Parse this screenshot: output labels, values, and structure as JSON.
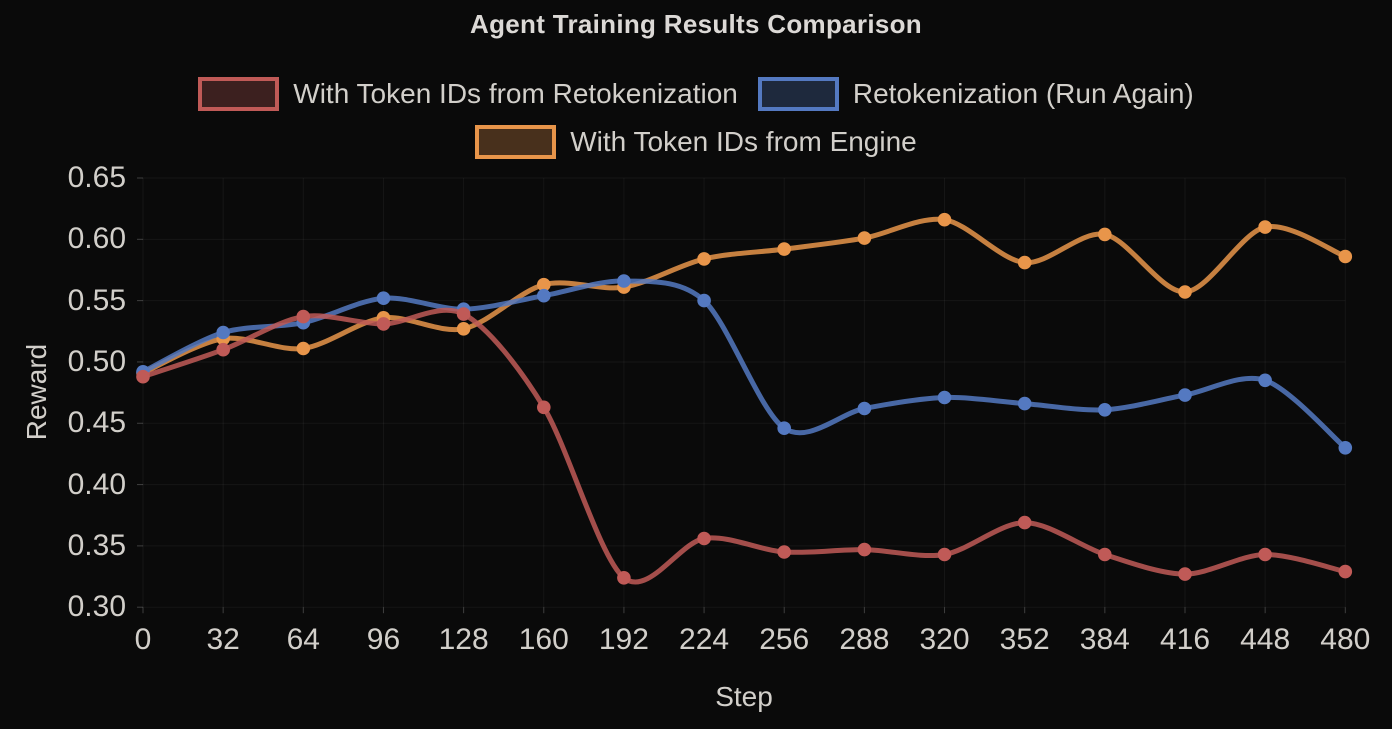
{
  "title": "Agent Training Results Comparison",
  "chart_data": {
    "type": "line",
    "title": "Agent Training Results Comparison",
    "xlabel": "Step",
    "ylabel": "Reward",
    "x": [
      0,
      32,
      64,
      96,
      128,
      160,
      192,
      224,
      256,
      288,
      320,
      352,
      384,
      416,
      448,
      480
    ],
    "xlim": [
      0,
      480
    ],
    "ylim": [
      0.3,
      0.65
    ],
    "yticks": [
      0.3,
      0.35,
      0.4,
      0.45,
      0.5,
      0.55,
      0.6,
      0.65
    ],
    "grid": true,
    "smooth": true,
    "legend_position": "top",
    "series": [
      {
        "name": "With Token IDs from Retokenization",
        "color": "#c05a57",
        "values": [
          0.488,
          0.51,
          0.537,
          0.531,
          0.539,
          0.463,
          0.324,
          0.356,
          0.345,
          0.347,
          0.343,
          0.369,
          0.343,
          0.327,
          0.343,
          0.329
        ]
      },
      {
        "name": "Retokenization (Run Again)",
        "color": "#5479c1",
        "values": [
          0.492,
          0.524,
          0.532,
          0.552,
          0.543,
          0.554,
          0.566,
          0.55,
          0.446,
          0.462,
          0.471,
          0.466,
          0.461,
          0.473,
          0.485,
          0.43
        ]
      },
      {
        "name": "With Token IDs from Engine",
        "color": "#e8954a",
        "values": [
          0.491,
          0.519,
          0.511,
          0.536,
          0.527,
          0.563,
          0.561,
          0.584,
          0.592,
          0.601,
          0.616,
          0.581,
          0.604,
          0.557,
          0.61,
          0.586
        ]
      }
    ],
    "style": {
      "background": "#0a0a0a",
      "text_color": "#d2cfca",
      "grid_color": "rgba(255,255,255,0.05)",
      "tick_mark_color": "rgba(255,255,255,0.22)"
    }
  }
}
